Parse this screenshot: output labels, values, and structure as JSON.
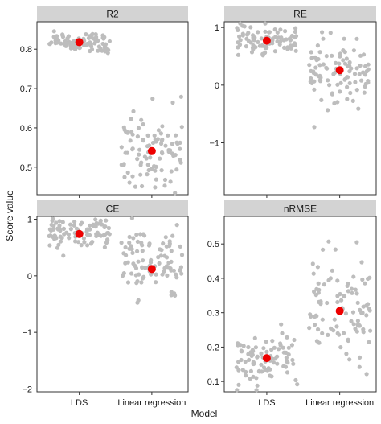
{
  "chart_data": {
    "type": "scatter",
    "style": "jittered strip plot with group means",
    "xlabel": "Model",
    "ylabel": "Score value",
    "categories": [
      "LDS",
      "Linear regression"
    ],
    "colors": {
      "points": "#bdbdbd",
      "mean": "#ee0000",
      "strip": "#d3d3d3"
    },
    "panels": [
      {
        "title": "R2",
        "ylim": [
          0.43,
          0.87
        ],
        "yticks": [
          0.5,
          0.6,
          0.7,
          0.8
        ],
        "ytick_labels": [
          "0.5",
          "0.6",
          "0.7",
          "0.8"
        ],
        "show_x_labels": false,
        "groups": [
          {
            "category": "LDS",
            "mean": 0.818,
            "center": 0.818,
            "spread": 0.025,
            "n": 90
          },
          {
            "category": "Linear regression",
            "mean": 0.541,
            "center": 0.541,
            "spread": 0.095,
            "n": 95
          }
        ]
      },
      {
        "title": "RE",
        "ylim": [
          -1.9,
          1.1
        ],
        "yticks": [
          -1,
          0,
          1
        ],
        "ytick_labels": [
          "−1",
          "0",
          "1"
        ],
        "show_x_labels": false,
        "groups": [
          {
            "category": "LDS",
            "mean": 0.77,
            "center": 0.78,
            "spread": 0.22,
            "n": 90
          },
          {
            "category": "Linear regression",
            "mean": 0.26,
            "center": 0.3,
            "spread": 0.55,
            "n": 95
          }
        ]
      },
      {
        "title": "CE",
        "ylim": [
          -2.05,
          1.05
        ],
        "yticks": [
          -2,
          -1,
          0,
          1
        ],
        "ytick_labels": [
          "−2",
          "−1",
          "0",
          "1"
        ],
        "show_x_labels": true,
        "groups": [
          {
            "category": "LDS",
            "mean": 0.74,
            "center": 0.76,
            "spread": 0.22,
            "n": 90
          },
          {
            "category": "Linear regression",
            "mean": 0.12,
            "center": 0.2,
            "spread": 0.6,
            "n": 95
          }
        ]
      },
      {
        "title": "nRMSE",
        "ylim": [
          0.07,
          0.58
        ],
        "yticks": [
          0.1,
          0.2,
          0.3,
          0.4,
          0.5
        ],
        "ytick_labels": [
          "0.1",
          "0.2",
          "0.3",
          "0.4",
          "0.5"
        ],
        "show_x_labels": true,
        "groups": [
          {
            "category": "LDS",
            "mean": 0.168,
            "center": 0.165,
            "spread": 0.075,
            "n": 90
          },
          {
            "category": "Linear regression",
            "mean": 0.305,
            "center": 0.3,
            "spread": 0.14,
            "n": 95
          }
        ]
      }
    ]
  }
}
